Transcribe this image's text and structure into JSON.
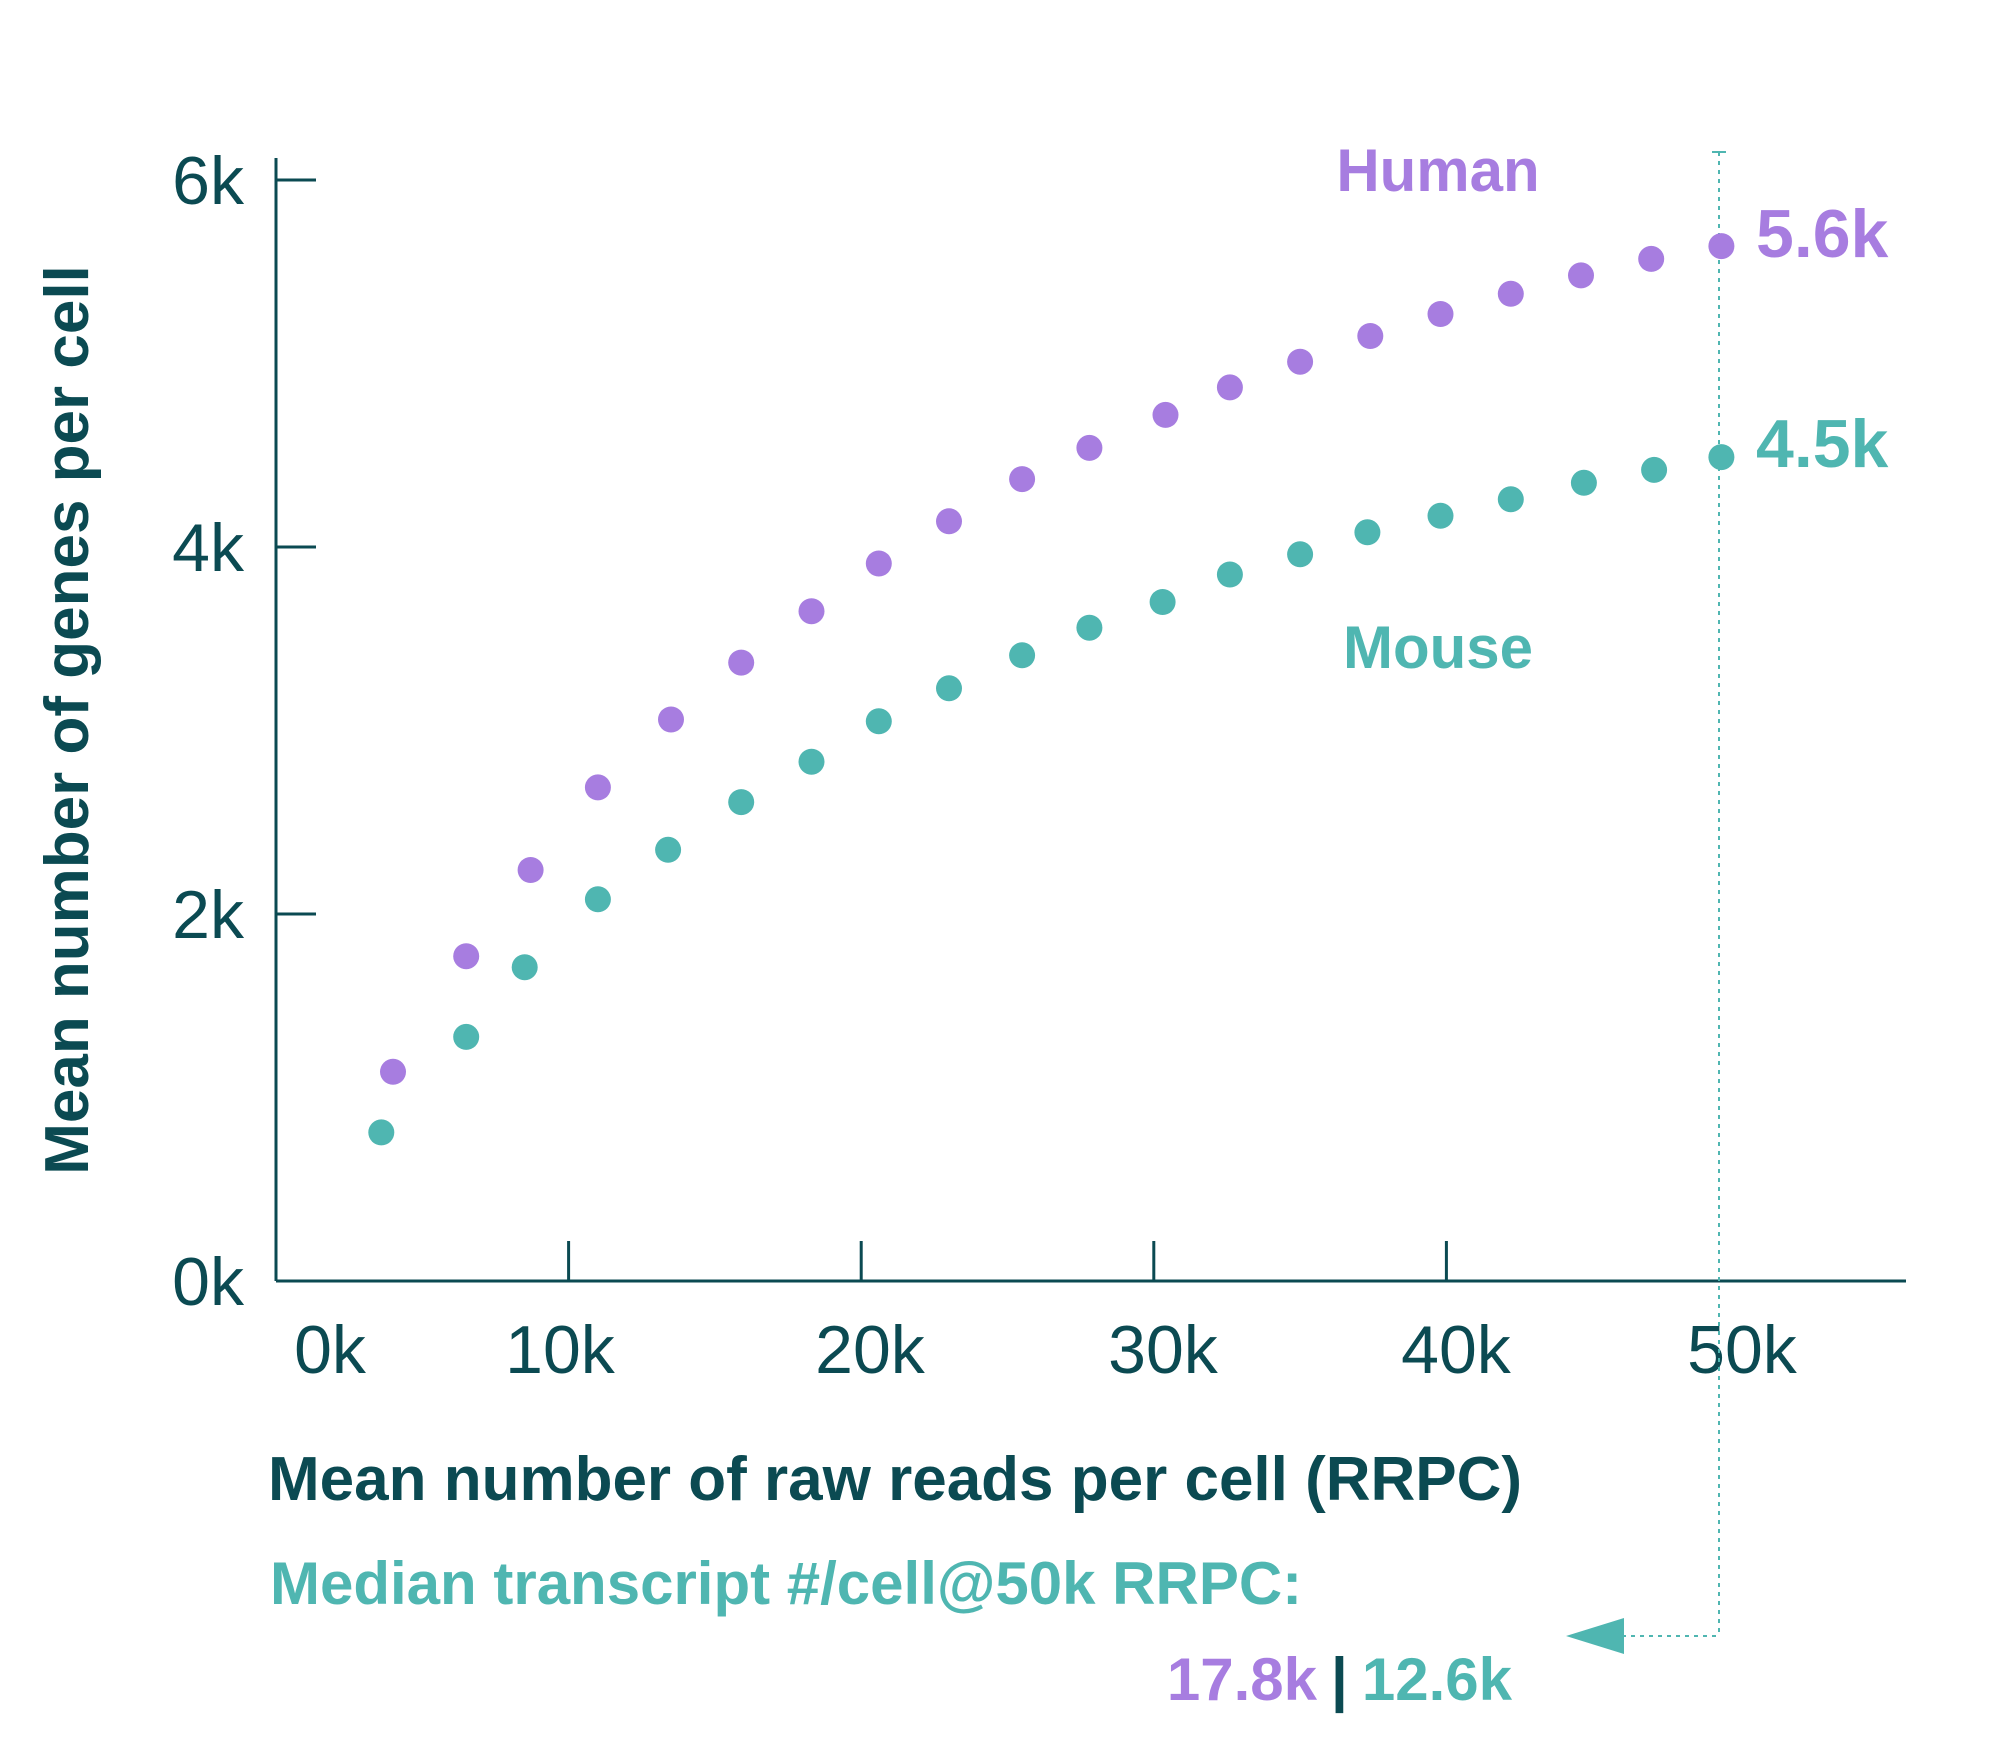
{
  "chart_data": {
    "type": "scatter",
    "xlabel": "Mean number of raw reads per cell (RRPC)",
    "ylabel": "Mean number of genes per cell",
    "xlim": [
      0,
      55000
    ],
    "ylim": [
      0,
      6000
    ],
    "x_ticks": [
      "0k",
      "10k",
      "20k",
      "30k",
      "40k",
      "50k"
    ],
    "y_ticks": [
      "0k",
      "2k",
      "4k",
      "6k"
    ],
    "grid": false,
    "series": [
      {
        "name": "Human",
        "color": "#a77de0",
        "end_label": "5.6k",
        "points": [
          [
            4000,
            1140
          ],
          [
            6500,
            1770
          ],
          [
            8700,
            2240
          ],
          [
            11000,
            2690
          ],
          [
            13500,
            3060
          ],
          [
            15900,
            3370
          ],
          [
            18300,
            3650
          ],
          [
            20600,
            3910
          ],
          [
            23000,
            4140
          ],
          [
            25500,
            4370
          ],
          [
            27800,
            4540
          ],
          [
            30400,
            4720
          ],
          [
            32600,
            4870
          ],
          [
            35000,
            5010
          ],
          [
            37400,
            5150
          ],
          [
            39800,
            5270
          ],
          [
            42200,
            5380
          ],
          [
            44600,
            5480
          ],
          [
            47000,
            5570
          ],
          [
            49400,
            5640
          ]
        ]
      },
      {
        "name": "Mouse",
        "color": "#4fb6b1",
        "end_label": "4.5k",
        "points": [
          [
            3600,
            810
          ],
          [
            6500,
            1330
          ],
          [
            8500,
            1710
          ],
          [
            11000,
            2080
          ],
          [
            13400,
            2350
          ],
          [
            15900,
            2610
          ],
          [
            18300,
            2830
          ],
          [
            20600,
            3050
          ],
          [
            23000,
            3230
          ],
          [
            25500,
            3410
          ],
          [
            27800,
            3560
          ],
          [
            30300,
            3700
          ],
          [
            32600,
            3850
          ],
          [
            35000,
            3960
          ],
          [
            37300,
            4080
          ],
          [
            39800,
            4170
          ],
          [
            42200,
            4260
          ],
          [
            44700,
            4350
          ],
          [
            47100,
            4420
          ],
          [
            49400,
            4490
          ]
        ]
      }
    ],
    "annotations": {
      "median_line1": "Median transcript #/cell@50k RRPC:",
      "median_human": "17.8k",
      "separator": "|",
      "median_mouse": "12.6k"
    }
  },
  "colors": {
    "axis": "#0b4a52",
    "human": "#a77de0",
    "mouse": "#4fb6b1"
  }
}
